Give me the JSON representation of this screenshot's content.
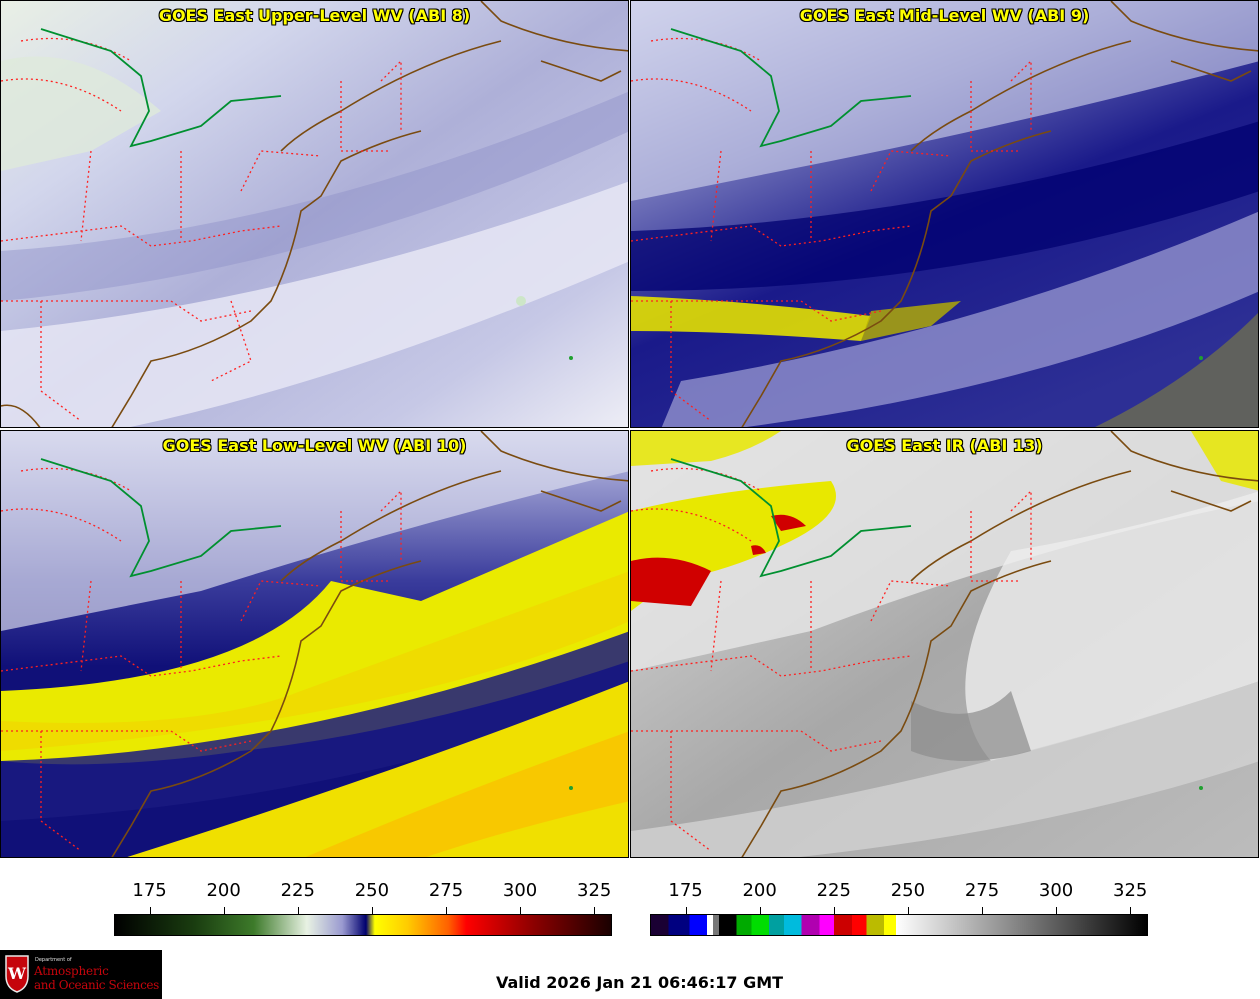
{
  "panels": [
    {
      "id": "p1",
      "title": "GOES East Upper-Level WV (ABI 8)",
      "scheme": "upper"
    },
    {
      "id": "p2",
      "title": "GOES East Mid-Level WV (ABI 9)",
      "scheme": "mid"
    },
    {
      "id": "p3",
      "title": "GOES East Low-Level WV (ABI 10)",
      "scheme": "low"
    },
    {
      "id": "p4",
      "title": "GOES East IR (ABI 13)",
      "scheme": "ir"
    }
  ],
  "colorbar_wv": {
    "ticks": [
      "175",
      "200",
      "225",
      "250",
      "275",
      "300",
      "325"
    ],
    "range": [
      163,
      331
    ],
    "stops": [
      {
        "v": 163,
        "c": "#000000"
      },
      {
        "v": 190,
        "c": "#1a3d10"
      },
      {
        "v": 210,
        "c": "#3d7a2a"
      },
      {
        "v": 228,
        "c": "#e8f2e3"
      },
      {
        "v": 240,
        "c": "#9a9ad0"
      },
      {
        "v": 248,
        "c": "#00006e"
      },
      {
        "v": 251,
        "c": "#ffff00"
      },
      {
        "v": 262,
        "c": "#ffcc00"
      },
      {
        "v": 276,
        "c": "#ff6000"
      },
      {
        "v": 282,
        "c": "#ff0000"
      },
      {
        "v": 305,
        "c": "#8b0000"
      },
      {
        "v": 331,
        "c": "#1a0000"
      }
    ]
  },
  "colorbar_ir": {
    "ticks": [
      "175",
      "200",
      "225",
      "250",
      "275",
      "300",
      "325"
    ],
    "range": [
      163,
      331
    ],
    "segments": [
      {
        "from": 163,
        "to": 169,
        "c": "#1a0033"
      },
      {
        "from": 169,
        "to": 176,
        "c": "#000080"
      },
      {
        "from": 176,
        "to": 182,
        "c": "#0000ff"
      },
      {
        "from": 182,
        "to": 184,
        "c": "#ffffff"
      },
      {
        "from": 184,
        "to": 186,
        "c": "#777777"
      },
      {
        "from": 186,
        "to": 192,
        "c": "#000000"
      },
      {
        "from": 192,
        "to": 197,
        "c": "#00aa00"
      },
      {
        "from": 197,
        "to": 203,
        "c": "#00dd00"
      },
      {
        "from": 203,
        "to": 208,
        "c": "#00a0a0"
      },
      {
        "from": 208,
        "to": 214,
        "c": "#00bbdd"
      },
      {
        "from": 214,
        "to": 220,
        "c": "#b000b0"
      },
      {
        "from": 220,
        "to": 225,
        "c": "#ff00ff"
      },
      {
        "from": 225,
        "to": 231,
        "c": "#cc0000"
      },
      {
        "from": 231,
        "to": 236,
        "c": "#ff0000"
      },
      {
        "from": 236,
        "to": 242,
        "c": "#bbbb00"
      },
      {
        "from": 242,
        "to": 246,
        "c": "#ffff00"
      }
    ],
    "gray_from": 246,
    "gray_to": 331
  },
  "logo": {
    "dept": "Department of",
    "line1": "Atmospheric",
    "line2": "and Oceanic Sciences",
    "crest_letter": "W"
  },
  "footer": {
    "valid": "Valid 2026 Jan 21 06:46:17 GMT"
  },
  "colors": {
    "state_border": "#ff2020",
    "coastline": "#7a4b10",
    "intl_border": "#009030",
    "title_text": "#ffff00"
  }
}
